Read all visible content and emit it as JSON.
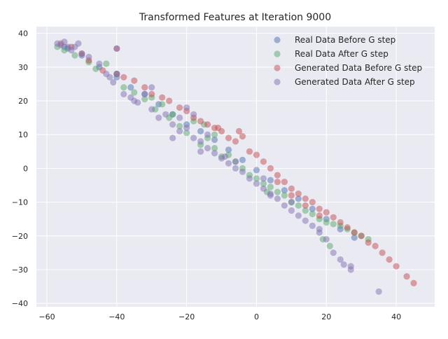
{
  "chart_data": {
    "type": "scatter",
    "title": "Transformed Features at Iteration 9000",
    "xlabel": "",
    "ylabel": "",
    "xlim": [
      -63,
      51
    ],
    "ylim": [
      -41,
      42
    ],
    "xticks": [
      -60,
      -40,
      -20,
      0,
      20,
      40
    ],
    "yticks": [
      -40,
      -30,
      -20,
      -10,
      0,
      10,
      20,
      30,
      40
    ],
    "grid": true,
    "background": "#eaeaf2",
    "legend_position": "top-right",
    "series": [
      {
        "name": "Real Data Before G step",
        "color": "#4c72b0",
        "points": [
          [
            -55,
            36
          ],
          [
            -54,
            35.5
          ],
          [
            -50,
            33.5
          ],
          [
            -45,
            30
          ],
          [
            -40,
            27
          ],
          [
            -36,
            24
          ],
          [
            -32,
            22
          ],
          [
            -28,
            19
          ],
          [
            -24,
            16
          ],
          [
            -20,
            13
          ],
          [
            -16,
            11
          ],
          [
            -12,
            8.5
          ],
          [
            -8,
            5.5
          ],
          [
            -4,
            2.5
          ],
          [
            0,
            -0.5
          ],
          [
            4,
            -3.5
          ],
          [
            8,
            -6.5
          ],
          [
            12,
            -9
          ],
          [
            16,
            -12
          ],
          [
            20,
            -15
          ],
          [
            24,
            -18
          ],
          [
            28,
            -20.5
          ]
        ]
      },
      {
        "name": "Real Data After G step",
        "color": "#55a868",
        "points": [
          [
            -57,
            36
          ],
          [
            -55,
            35
          ],
          [
            -52,
            33.5
          ],
          [
            -48,
            31.5
          ],
          [
            -46,
            29.5
          ],
          [
            -43,
            31
          ],
          [
            -40,
            28
          ],
          [
            -38,
            24
          ],
          [
            -35,
            22.5
          ],
          [
            -32,
            20.5
          ],
          [
            -29,
            17.5
          ],
          [
            -27,
            19
          ],
          [
            -24,
            16
          ],
          [
            -22,
            12.5
          ],
          [
            -20,
            10.5
          ],
          [
            -18,
            14
          ],
          [
            -16,
            7
          ],
          [
            -14,
            9
          ],
          [
            -12,
            6
          ],
          [
            -10,
            3.5
          ],
          [
            -8,
            4
          ],
          [
            -6,
            2
          ],
          [
            -4,
            0
          ],
          [
            -2,
            -2
          ],
          [
            0,
            -3
          ],
          [
            2,
            -4.5
          ],
          [
            4,
            -5.5
          ],
          [
            6,
            -7
          ],
          [
            8,
            -8
          ],
          [
            10,
            -10
          ],
          [
            12,
            -11
          ],
          [
            14,
            -12.5
          ],
          [
            16,
            -13.5
          ],
          [
            18,
            -15
          ],
          [
            20,
            -16
          ],
          [
            22,
            -16.5
          ],
          [
            24,
            -17
          ],
          [
            26,
            -18
          ],
          [
            28,
            -19
          ],
          [
            30,
            -20
          ],
          [
            32,
            -21
          ],
          [
            -15,
            13
          ],
          [
            -25,
            15
          ],
          [
            -30,
            21
          ],
          [
            19,
            -21
          ],
          [
            21,
            -23
          ],
          [
            -12,
            10
          ],
          [
            3,
            -7
          ]
        ]
      },
      {
        "name": "Generated Data Before G step",
        "color": "#c44e52",
        "points": [
          [
            -56,
            37
          ],
          [
            -53,
            36
          ],
          [
            -50,
            34
          ],
          [
            -48,
            32
          ],
          [
            -44,
            29
          ],
          [
            -40,
            28
          ],
          [
            -38,
            27
          ],
          [
            -35,
            26
          ],
          [
            -32,
            24
          ],
          [
            -30,
            22
          ],
          [
            -27,
            21
          ],
          [
            -25,
            20
          ],
          [
            -22,
            18
          ],
          [
            -20,
            17
          ],
          [
            -18,
            15
          ],
          [
            -16,
            14
          ],
          [
            -14,
            13
          ],
          [
            -12,
            12
          ],
          [
            -10,
            11
          ],
          [
            -8,
            9
          ],
          [
            -6,
            8
          ],
          [
            -5,
            11
          ],
          [
            -4,
            9.5
          ],
          [
            -2,
            5
          ],
          [
            0,
            4
          ],
          [
            2,
            2
          ],
          [
            4,
            0
          ],
          [
            6,
            -2
          ],
          [
            8,
            -4
          ],
          [
            10,
            -6
          ],
          [
            12,
            -7.5
          ],
          [
            14,
            -9
          ],
          [
            16,
            -10
          ],
          [
            18,
            -12
          ],
          [
            20,
            -13
          ],
          [
            22,
            -14.5
          ],
          [
            24,
            -16
          ],
          [
            26,
            -17.5
          ],
          [
            28,
            -19
          ],
          [
            30,
            -20
          ],
          [
            32,
            -22
          ],
          [
            34,
            -23
          ],
          [
            36,
            -25
          ],
          [
            38,
            -27
          ],
          [
            40,
            -29
          ],
          [
            43,
            -32
          ],
          [
            45,
            -34
          ],
          [
            -40,
            35.5
          ],
          [
            -11,
            12
          ],
          [
            6,
            -4
          ],
          [
            10,
            -8
          ],
          [
            14,
            -11
          ],
          [
            18,
            -14
          ]
        ]
      },
      {
        "name": "Generated Data After G step",
        "color": "#8172b2",
        "points": [
          [
            -57,
            37
          ],
          [
            -56,
            36.5
          ],
          [
            -55,
            37.5
          ],
          [
            -54,
            36
          ],
          [
            -53,
            35
          ],
          [
            -52,
            36
          ],
          [
            -51,
            37
          ],
          [
            -50,
            34
          ],
          [
            -48,
            33
          ],
          [
            -45,
            31
          ],
          [
            -43,
            28
          ],
          [
            -41,
            25.5
          ],
          [
            -40,
            28
          ],
          [
            -38,
            22
          ],
          [
            -36,
            21
          ],
          [
            -34,
            19.5
          ],
          [
            -32,
            22
          ],
          [
            -30,
            17.5
          ],
          [
            -28,
            15
          ],
          [
            -26,
            16
          ],
          [
            -24,
            13
          ],
          [
            -22,
            11
          ],
          [
            -20,
            12
          ],
          [
            -18,
            9
          ],
          [
            -16,
            8
          ],
          [
            -14,
            6
          ],
          [
            -12,
            4.5
          ],
          [
            -10,
            3
          ],
          [
            -8,
            1.5
          ],
          [
            -6,
            0
          ],
          [
            -4,
            -1
          ],
          [
            -2,
            -3
          ],
          [
            0,
            -4.5
          ],
          [
            2,
            -6
          ],
          [
            4,
            -7.5
          ],
          [
            6,
            -9
          ],
          [
            8,
            -11
          ],
          [
            10,
            -12.5
          ],
          [
            12,
            -14
          ],
          [
            14,
            -15.5
          ],
          [
            16,
            -17
          ],
          [
            18,
            -19
          ],
          [
            20,
            -21
          ],
          [
            22,
            -25
          ],
          [
            24,
            -27
          ],
          [
            25,
            -28.5
          ],
          [
            27,
            -30
          ],
          [
            -40,
            35.5
          ],
          [
            -42,
            27
          ],
          [
            -30,
            24
          ],
          [
            -22,
            15
          ],
          [
            -14,
            10
          ],
          [
            -6,
            2
          ],
          [
            2,
            -3
          ],
          [
            10,
            -10
          ],
          [
            18,
            -18
          ],
          [
            35,
            -36.5
          ],
          [
            -20,
            18
          ],
          [
            -18,
            16
          ],
          [
            -24,
            9
          ],
          [
            -16,
            5
          ],
          [
            -9,
            3.5
          ],
          [
            4,
            -8
          ],
          [
            -35,
            20
          ],
          [
            27,
            -29
          ]
        ]
      }
    ]
  }
}
